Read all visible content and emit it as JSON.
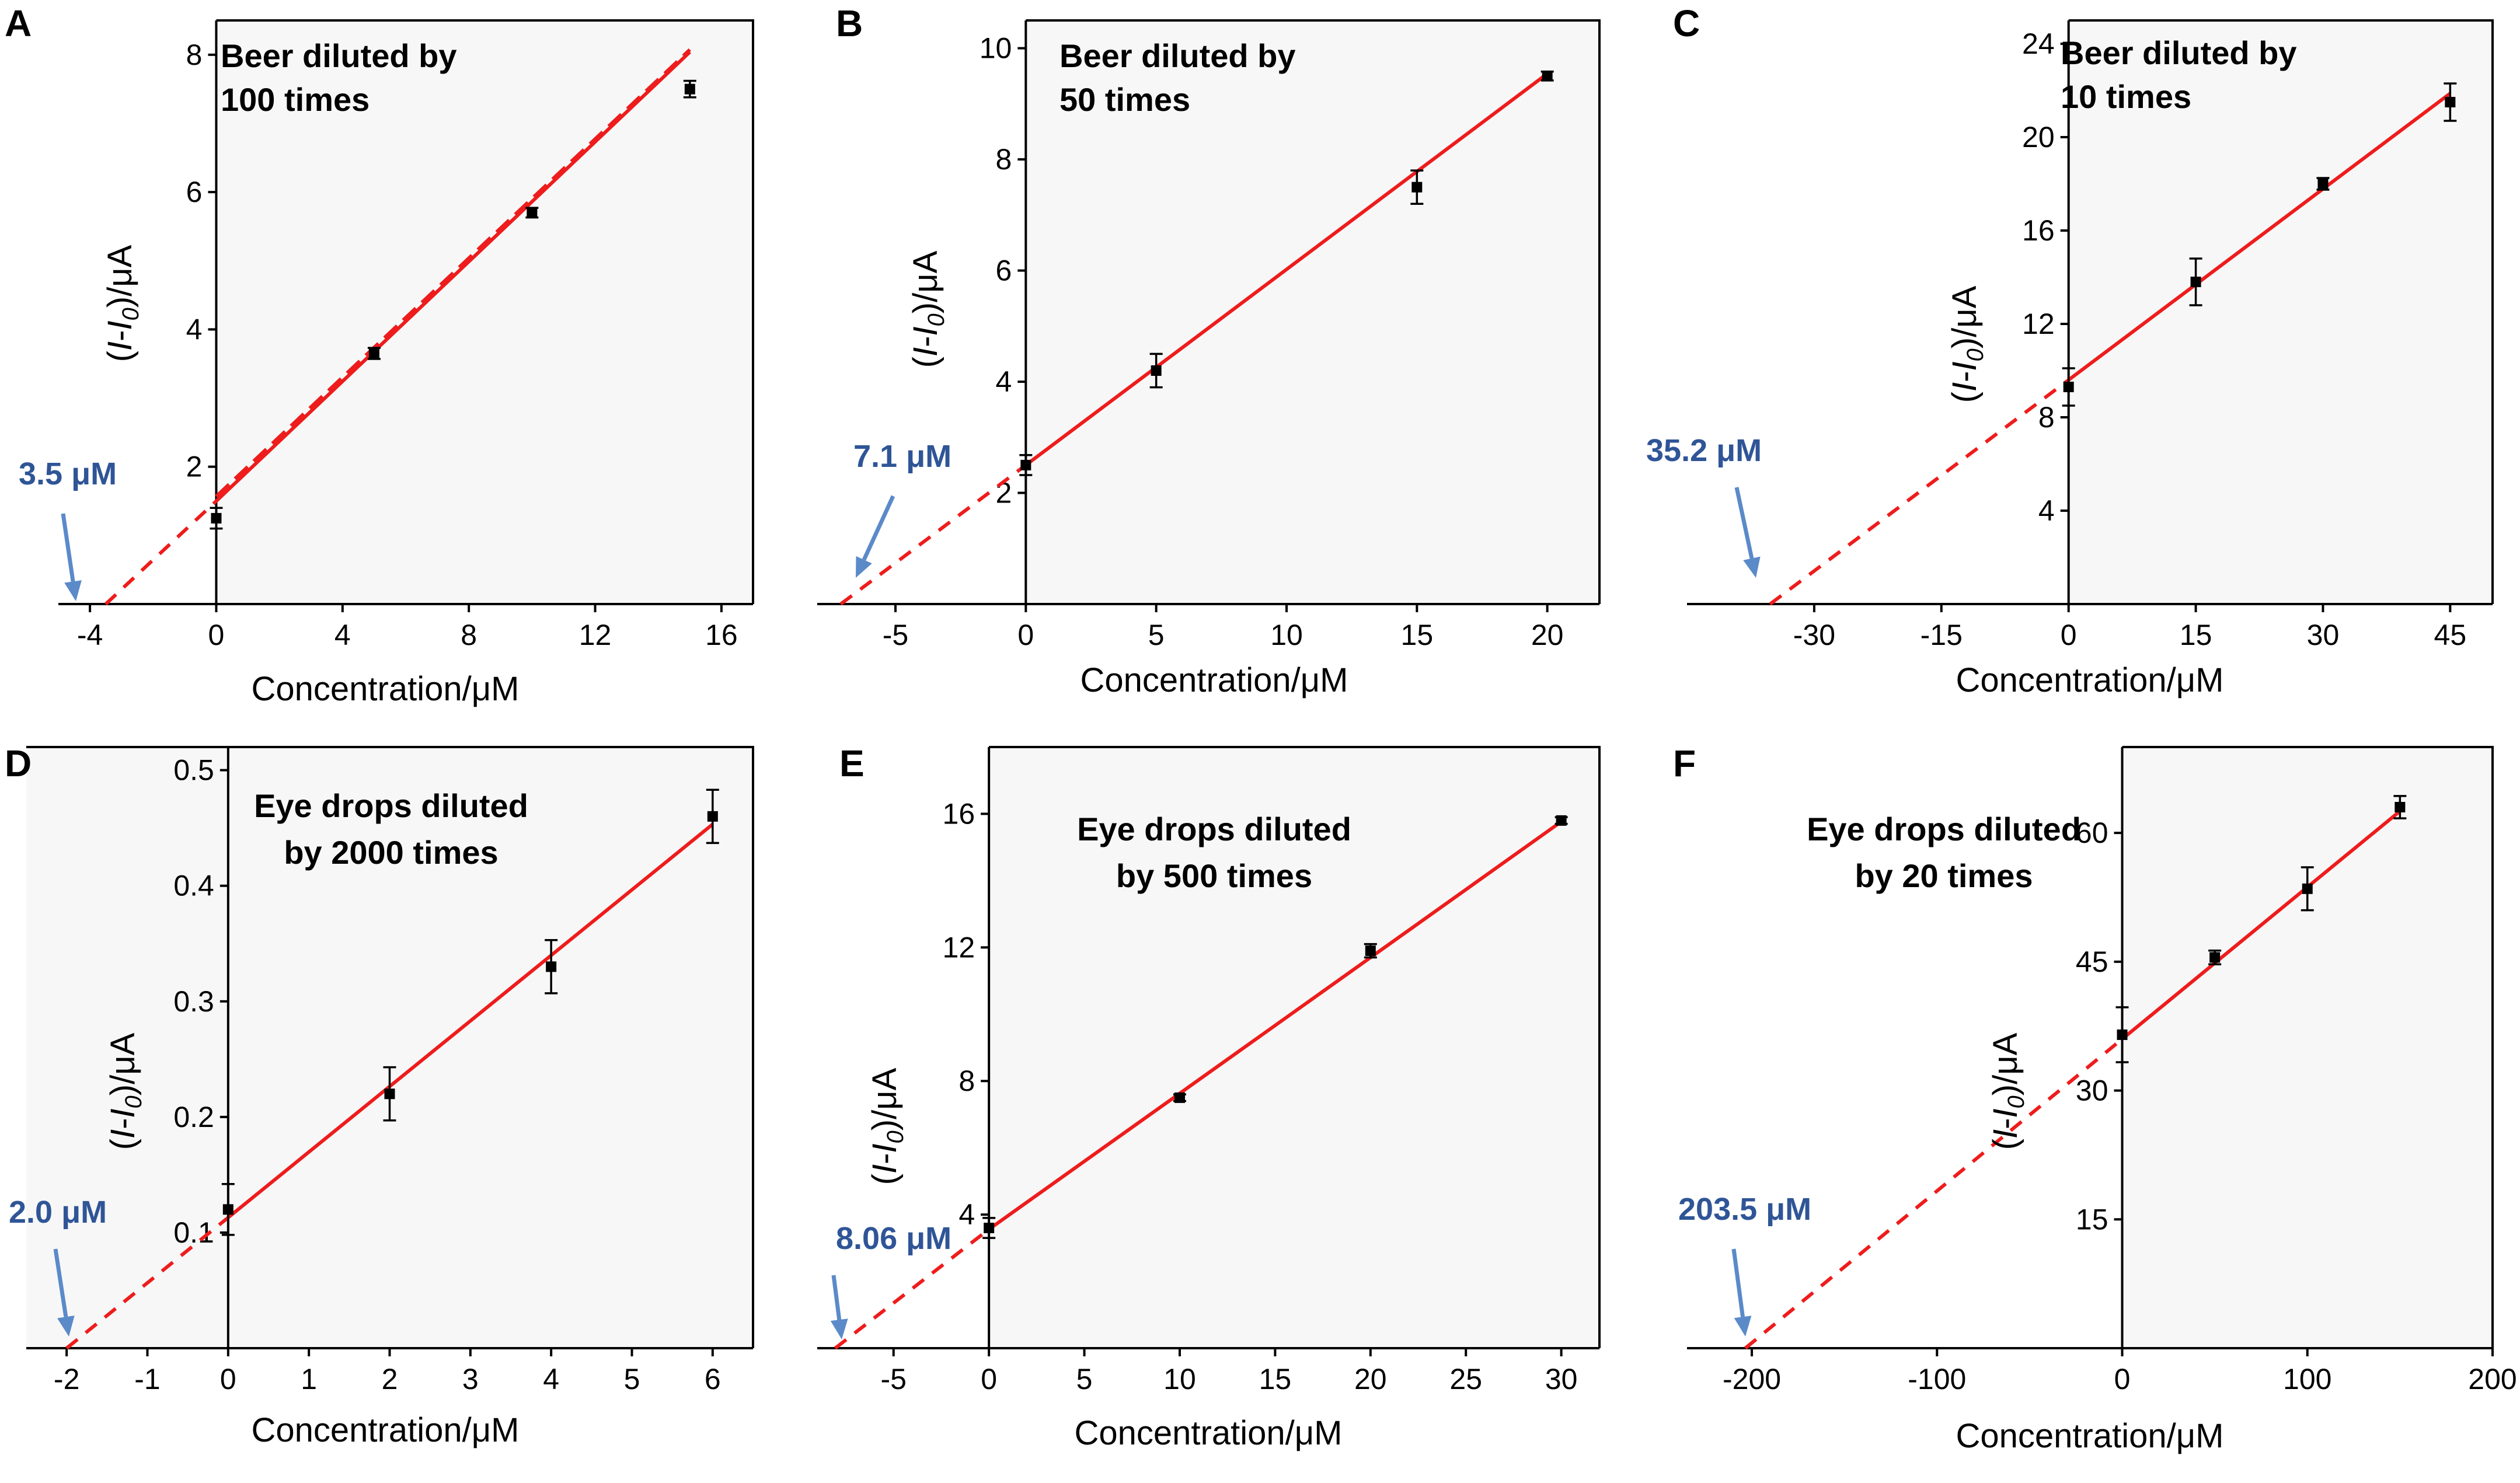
{
  "chart_data": [
    {
      "id": "A",
      "type": "scatter",
      "panel_label": "A",
      "title_lines": [
        "Beer diluted  by",
        "100 times"
      ],
      "xlabel": "Concentration/μM",
      "ylabel_parts": [
        "(",
        "I",
        "-",
        "I",
        "0",
        ")/μA"
      ],
      "xlim": [
        -5,
        17
      ],
      "ylim": [
        0,
        8.5
      ],
      "xticks": [
        -4,
        0,
        4,
        8,
        12,
        16
      ],
      "xtick_labels": [
        "-4",
        "0",
        "4",
        "8",
        "12",
        "16"
      ],
      "yticks": [
        2,
        4,
        6,
        8
      ],
      "ytick_labels": [
        "2",
        "4",
        "6",
        "8"
      ],
      "frame_left": 0,
      "points": [
        {
          "x": 0,
          "y": 1.25,
          "err": 0.15
        },
        {
          "x": 5,
          "y": 3.65,
          "err": 0.08
        },
        {
          "x": 10,
          "y": 5.7,
          "err": 0.07
        },
        {
          "x": 15,
          "y": 7.5,
          "err": 0.12
        }
      ],
      "fit": {
        "slope": 0.436,
        "intercept": 1.5,
        "x_end": 15
      },
      "extrapolation_x0": -3.5,
      "second_dashed_fit": true,
      "intercept_label": "3.5 μM"
    },
    {
      "id": "B",
      "type": "scatter",
      "panel_label": "B",
      "title_lines": [
        "Beer diluted  by",
        " 50 times"
      ],
      "xlabel": "Concentration/μM",
      "ylabel_parts": [
        "(",
        "I",
        "-",
        "I",
        "0",
        ")/μA"
      ],
      "xlim": [
        -8,
        22
      ],
      "ylim": [
        0,
        10.5
      ],
      "xticks": [
        -5,
        0,
        5,
        10,
        15,
        20
      ],
      "xtick_labels": [
        "-5",
        "0",
        "5",
        "10",
        "15",
        "20"
      ],
      "yticks": [
        2,
        4,
        6,
        8,
        10
      ],
      "ytick_labels": [
        "2",
        "4",
        "6",
        "8",
        "10"
      ],
      "frame_left": 0,
      "points": [
        {
          "x": 0,
          "y": 2.5,
          "err": 0.18
        },
        {
          "x": 5,
          "y": 4.2,
          "err": 0.3
        },
        {
          "x": 15,
          "y": 7.5,
          "err": 0.3
        },
        {
          "x": 20,
          "y": 9.5,
          "err": 0.08
        }
      ],
      "fit": {
        "slope": 0.3521,
        "intercept": 2.5,
        "x_end": 20
      },
      "extrapolation_x0": -7.1,
      "second_dashed_fit": false,
      "intercept_label": "7.1 μM"
    },
    {
      "id": "C",
      "type": "scatter",
      "panel_label": "C",
      "title_lines": [
        "Beer diluted  by",
        " 10 times"
      ],
      "xlabel": "Concentration/μM",
      "ylabel_parts": [
        "(",
        "I",
        "-",
        "I",
        "0",
        ")/μA"
      ],
      "xlim": [
        -45,
        50
      ],
      "ylim": [
        0,
        25
      ],
      "xticks": [
        -30,
        -15,
        0,
        15,
        30,
        45
      ],
      "xtick_labels": [
        "-30",
        "-15",
        "0",
        "15",
        "30",
        "45"
      ],
      "yticks": [
        4,
        8,
        12,
        16,
        20,
        24
      ],
      "ytick_labels": [
        "4",
        "8",
        "12",
        "16",
        "20",
        "24"
      ],
      "frame_left": 0,
      "points": [
        {
          "x": 0,
          "y": 9.3,
          "err": 0.8
        },
        {
          "x": 15,
          "y": 13.8,
          "err": 1.0
        },
        {
          "x": 30,
          "y": 18.0,
          "err": 0.25
        },
        {
          "x": 45,
          "y": 21.5,
          "err": 0.8
        }
      ],
      "fit": {
        "slope": 0.2727,
        "intercept": 9.6,
        "x_end": 45
      },
      "extrapolation_x0": -35.2,
      "second_dashed_fit": false,
      "intercept_label": "35.2 μM"
    },
    {
      "id": "D",
      "type": "scatter",
      "panel_label": "D",
      "title_lines": [
        "Eye drops diluted",
        "by 2000 times"
      ],
      "xlabel": "Concentration/μM",
      "ylabel_parts": [
        "(",
        "I",
        "-",
        "I",
        "0",
        ")/μA"
      ],
      "xlim": [
        -2.5,
        6.5
      ],
      "ylim": [
        0,
        0.52
      ],
      "xticks": [
        -2,
        -1,
        0,
        1,
        2,
        3,
        4,
        5,
        6
      ],
      "xtick_labels": [
        "-2",
        "-1",
        "0",
        "1",
        "2",
        "3",
        "4",
        "5",
        "6"
      ],
      "yticks": [
        0.1,
        0.2,
        0.3,
        0.4,
        0.5
      ],
      "ytick_labels": [
        "0.1",
        "0.2",
        "0.3",
        "0.4",
        "0.5"
      ],
      "frame_left": -2.5,
      "points": [
        {
          "x": 0,
          "y": 0.12,
          "err": 0.022
        },
        {
          "x": 2,
          "y": 0.22,
          "err": 0.023
        },
        {
          "x": 4,
          "y": 0.33,
          "err": 0.023
        },
        {
          "x": 6,
          "y": 0.46,
          "err": 0.023
        }
      ],
      "fit": {
        "slope": 0.0567,
        "intercept": 0.113,
        "x_end": 6
      },
      "extrapolation_x0": -2.0,
      "second_dashed_fit": false,
      "intercept_label": "2.0 μM"
    },
    {
      "id": "E",
      "type": "scatter",
      "panel_label": "E",
      "title_lines": [
        "Eye drops diluted",
        "by 500 times"
      ],
      "xlabel": "Concentration/μM",
      "ylabel_parts": [
        "(",
        "I",
        "-",
        "I",
        "0",
        ")/μA"
      ],
      "xlim": [
        -9,
        32
      ],
      "ylim": [
        0,
        18
      ],
      "xticks": [
        -5,
        0,
        5,
        10,
        15,
        20,
        25,
        30
      ],
      "xtick_labels": [
        "-5",
        "0",
        "5",
        "10",
        "15",
        "20",
        "25",
        "30"
      ],
      "yticks": [
        4,
        8,
        12,
        16
      ],
      "ytick_labels": [
        "4",
        "8",
        "12",
        "16"
      ],
      "frame_left": 0,
      "points": [
        {
          "x": 0,
          "y": 3.6,
          "err": 0.3
        },
        {
          "x": 10,
          "y": 7.5,
          "err": 0.1
        },
        {
          "x": 20,
          "y": 11.9,
          "err": 0.2
        },
        {
          "x": 30,
          "y": 15.8,
          "err": 0.1
        }
      ],
      "fit": {
        "slope": 0.4069,
        "intercept": 3.56,
        "x_end": 30
      },
      "extrapolation_x0": -8.06,
      "second_dashed_fit": false,
      "intercept_label": "8.06 μM"
    },
    {
      "id": "F",
      "type": "scatter",
      "panel_label": "F",
      "title_lines": [
        "Eye drops diluted",
        "by 20 times"
      ],
      "xlabel": "Concentration/μM",
      "ylabel_parts": [
        "(",
        "I",
        "-",
        "I",
        "0",
        ")/μA"
      ],
      "xlim": [
        -235,
        200
      ],
      "ylim": [
        0,
        70
      ],
      "xticks": [
        -200,
        -100,
        0,
        100,
        200
      ],
      "xtick_labels": [
        "-200",
        "-100",
        "0",
        "100",
        "200"
      ],
      "yticks": [
        15,
        30,
        45,
        60
      ],
      "ytick_labels": [
        "15",
        "30",
        "45",
        "60"
      ],
      "frame_left": 0,
      "points": [
        {
          "x": 0,
          "y": 36.5,
          "err": 3.2
        },
        {
          "x": 50,
          "y": 45.5,
          "err": 0.8
        },
        {
          "x": 100,
          "y": 53.5,
          "err": 2.5
        },
        {
          "x": 150,
          "y": 63.0,
          "err": 1.3
        }
      ],
      "fit": {
        "slope": 0.1769,
        "intercept": 36.0,
        "x_end": 150
      },
      "extrapolation_x0": -203.5,
      "second_dashed_fit": false,
      "intercept_label": "203.5 μM"
    }
  ]
}
